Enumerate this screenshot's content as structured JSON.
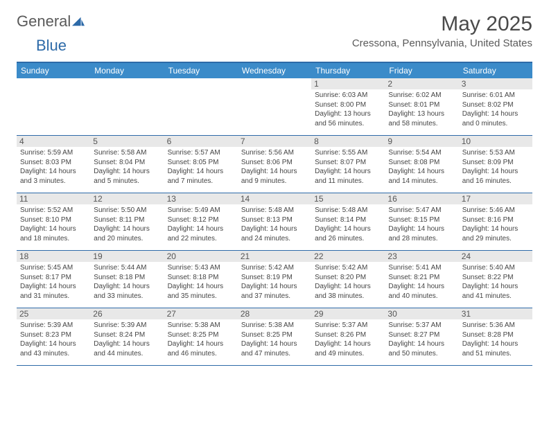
{
  "logo": {
    "general": "General",
    "blue": "Blue"
  },
  "month_title": "May 2025",
  "location": "Cressona, Pennsylvania, United States",
  "colors": {
    "header_bar": "#3b8bc9",
    "accent_line": "#2d6aa8",
    "daynum_bg": "#e8e8e8",
    "text": "#444444"
  },
  "weekdays": [
    "Sunday",
    "Monday",
    "Tuesday",
    "Wednesday",
    "Thursday",
    "Friday",
    "Saturday"
  ],
  "weeks": [
    [
      {
        "empty": true
      },
      {
        "empty": true
      },
      {
        "empty": true
      },
      {
        "empty": true
      },
      {
        "n": "1",
        "sunrise": "Sunrise: 6:03 AM",
        "sunset": "Sunset: 8:00 PM",
        "daylight": "Daylight: 13 hours and 56 minutes."
      },
      {
        "n": "2",
        "sunrise": "Sunrise: 6:02 AM",
        "sunset": "Sunset: 8:01 PM",
        "daylight": "Daylight: 13 hours and 58 minutes."
      },
      {
        "n": "3",
        "sunrise": "Sunrise: 6:01 AM",
        "sunset": "Sunset: 8:02 PM",
        "daylight": "Daylight: 14 hours and 0 minutes."
      }
    ],
    [
      {
        "n": "4",
        "sunrise": "Sunrise: 5:59 AM",
        "sunset": "Sunset: 8:03 PM",
        "daylight": "Daylight: 14 hours and 3 minutes."
      },
      {
        "n": "5",
        "sunrise": "Sunrise: 5:58 AM",
        "sunset": "Sunset: 8:04 PM",
        "daylight": "Daylight: 14 hours and 5 minutes."
      },
      {
        "n": "6",
        "sunrise": "Sunrise: 5:57 AM",
        "sunset": "Sunset: 8:05 PM",
        "daylight": "Daylight: 14 hours and 7 minutes."
      },
      {
        "n": "7",
        "sunrise": "Sunrise: 5:56 AM",
        "sunset": "Sunset: 8:06 PM",
        "daylight": "Daylight: 14 hours and 9 minutes."
      },
      {
        "n": "8",
        "sunrise": "Sunrise: 5:55 AM",
        "sunset": "Sunset: 8:07 PM",
        "daylight": "Daylight: 14 hours and 11 minutes."
      },
      {
        "n": "9",
        "sunrise": "Sunrise: 5:54 AM",
        "sunset": "Sunset: 8:08 PM",
        "daylight": "Daylight: 14 hours and 14 minutes."
      },
      {
        "n": "10",
        "sunrise": "Sunrise: 5:53 AM",
        "sunset": "Sunset: 8:09 PM",
        "daylight": "Daylight: 14 hours and 16 minutes."
      }
    ],
    [
      {
        "n": "11",
        "sunrise": "Sunrise: 5:52 AM",
        "sunset": "Sunset: 8:10 PM",
        "daylight": "Daylight: 14 hours and 18 minutes."
      },
      {
        "n": "12",
        "sunrise": "Sunrise: 5:50 AM",
        "sunset": "Sunset: 8:11 PM",
        "daylight": "Daylight: 14 hours and 20 minutes."
      },
      {
        "n": "13",
        "sunrise": "Sunrise: 5:49 AM",
        "sunset": "Sunset: 8:12 PM",
        "daylight": "Daylight: 14 hours and 22 minutes."
      },
      {
        "n": "14",
        "sunrise": "Sunrise: 5:48 AM",
        "sunset": "Sunset: 8:13 PM",
        "daylight": "Daylight: 14 hours and 24 minutes."
      },
      {
        "n": "15",
        "sunrise": "Sunrise: 5:48 AM",
        "sunset": "Sunset: 8:14 PM",
        "daylight": "Daylight: 14 hours and 26 minutes."
      },
      {
        "n": "16",
        "sunrise": "Sunrise: 5:47 AM",
        "sunset": "Sunset: 8:15 PM",
        "daylight": "Daylight: 14 hours and 28 minutes."
      },
      {
        "n": "17",
        "sunrise": "Sunrise: 5:46 AM",
        "sunset": "Sunset: 8:16 PM",
        "daylight": "Daylight: 14 hours and 29 minutes."
      }
    ],
    [
      {
        "n": "18",
        "sunrise": "Sunrise: 5:45 AM",
        "sunset": "Sunset: 8:17 PM",
        "daylight": "Daylight: 14 hours and 31 minutes."
      },
      {
        "n": "19",
        "sunrise": "Sunrise: 5:44 AM",
        "sunset": "Sunset: 8:18 PM",
        "daylight": "Daylight: 14 hours and 33 minutes."
      },
      {
        "n": "20",
        "sunrise": "Sunrise: 5:43 AM",
        "sunset": "Sunset: 8:18 PM",
        "daylight": "Daylight: 14 hours and 35 minutes."
      },
      {
        "n": "21",
        "sunrise": "Sunrise: 5:42 AM",
        "sunset": "Sunset: 8:19 PM",
        "daylight": "Daylight: 14 hours and 37 minutes."
      },
      {
        "n": "22",
        "sunrise": "Sunrise: 5:42 AM",
        "sunset": "Sunset: 8:20 PM",
        "daylight": "Daylight: 14 hours and 38 minutes."
      },
      {
        "n": "23",
        "sunrise": "Sunrise: 5:41 AM",
        "sunset": "Sunset: 8:21 PM",
        "daylight": "Daylight: 14 hours and 40 minutes."
      },
      {
        "n": "24",
        "sunrise": "Sunrise: 5:40 AM",
        "sunset": "Sunset: 8:22 PM",
        "daylight": "Daylight: 14 hours and 41 minutes."
      }
    ],
    [
      {
        "n": "25",
        "sunrise": "Sunrise: 5:39 AM",
        "sunset": "Sunset: 8:23 PM",
        "daylight": "Daylight: 14 hours and 43 minutes."
      },
      {
        "n": "26",
        "sunrise": "Sunrise: 5:39 AM",
        "sunset": "Sunset: 8:24 PM",
        "daylight": "Daylight: 14 hours and 44 minutes."
      },
      {
        "n": "27",
        "sunrise": "Sunrise: 5:38 AM",
        "sunset": "Sunset: 8:25 PM",
        "daylight": "Daylight: 14 hours and 46 minutes."
      },
      {
        "n": "28",
        "sunrise": "Sunrise: 5:38 AM",
        "sunset": "Sunset: 8:25 PM",
        "daylight": "Daylight: 14 hours and 47 minutes."
      },
      {
        "n": "29",
        "sunrise": "Sunrise: 5:37 AM",
        "sunset": "Sunset: 8:26 PM",
        "daylight": "Daylight: 14 hours and 49 minutes."
      },
      {
        "n": "30",
        "sunrise": "Sunrise: 5:37 AM",
        "sunset": "Sunset: 8:27 PM",
        "daylight": "Daylight: 14 hours and 50 minutes."
      },
      {
        "n": "31",
        "sunrise": "Sunrise: 5:36 AM",
        "sunset": "Sunset: 8:28 PM",
        "daylight": "Daylight: 14 hours and 51 minutes."
      }
    ]
  ]
}
